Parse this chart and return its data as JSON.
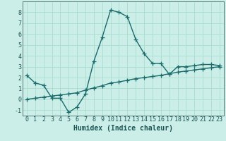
{
  "xlabel": "Humidex (Indice chaleur)",
  "background_color": "#cceee8",
  "grid_color": "#aaddcc",
  "line_color": "#1a6b6b",
  "ylim": [
    -1.5,
    9.0
  ],
  "xlim": [
    -0.5,
    23.5
  ],
  "yticks": [
    -1,
    0,
    1,
    2,
    3,
    4,
    5,
    6,
    7,
    8
  ],
  "xticks": [
    0,
    1,
    2,
    3,
    4,
    5,
    6,
    7,
    8,
    9,
    10,
    11,
    12,
    13,
    14,
    15,
    16,
    17,
    18,
    19,
    20,
    21,
    22,
    23
  ],
  "curve1_x": [
    0,
    1,
    2,
    3,
    4,
    5,
    6,
    7,
    8,
    9,
    10,
    11,
    12,
    13,
    14,
    15,
    16,
    17,
    18,
    19,
    20,
    21,
    22,
    23
  ],
  "curve1_y": [
    2.2,
    1.5,
    1.3,
    0.1,
    0.1,
    -1.2,
    -0.7,
    0.5,
    3.5,
    5.7,
    8.2,
    8.0,
    7.6,
    5.5,
    4.2,
    3.3,
    3.3,
    2.3,
    3.0,
    3.0,
    3.1,
    3.2,
    3.2,
    3.1
  ],
  "curve2_x": [
    0,
    1,
    2,
    3,
    4,
    5,
    6,
    7,
    8,
    9,
    10,
    11,
    12,
    13,
    14,
    15,
    16,
    17,
    18,
    19,
    20,
    21,
    22,
    23
  ],
  "curve2_y": [
    0.0,
    0.1,
    0.2,
    0.3,
    0.4,
    0.5,
    0.6,
    0.85,
    1.05,
    1.25,
    1.5,
    1.6,
    1.75,
    1.9,
    2.0,
    2.1,
    2.2,
    2.35,
    2.5,
    2.6,
    2.7,
    2.8,
    2.9,
    3.0
  ],
  "marker": "+",
  "markersize": 4,
  "linewidth": 1.0,
  "xlabel_fontsize": 7,
  "tick_fontsize": 6,
  "ylabel_fontsize": 6
}
